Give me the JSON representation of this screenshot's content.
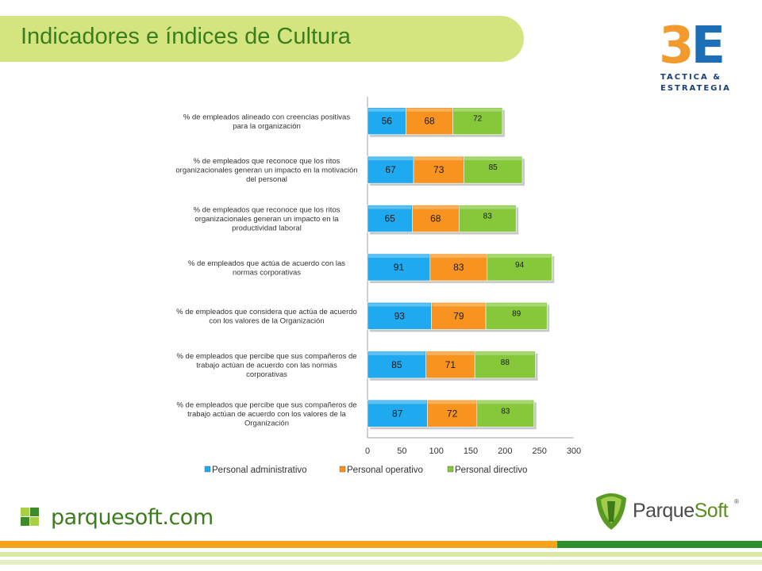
{
  "header": {
    "title": "Indicadores e índices de Cultura"
  },
  "logo": {
    "mark_left": "3",
    "mark_right": "E",
    "line1": "TACTICA &",
    "line2": "ESTRATEGIA"
  },
  "footer": {
    "site": "parquesoft.com",
    "brand_a": "Parque",
    "brand_b": "Soft",
    "brand_reg": "®"
  },
  "chart_data": {
    "type": "bar",
    "orientation": "horizontal",
    "stacked": true,
    "categories": [
      "% de empleados alineado con creencias positivas\npara la organización",
      "% de empleados que reconoce que los ritos\norganizacionales generan un impacto en la motivación\ndel personal",
      "% de empleados que reconoce que los ritos\norganizacionales generan un impacto en la\nproductividad laboral",
      "% de empleados que actúa de acuerdo con las\nnormas corporativas",
      "% de empleados que considera que actúa de acuerdo\ncon los valores de la Organización",
      "% de empleados que percibe que sus compañeros de\ntrabajo actúan de acuerdo con las normas\ncorporativas",
      "% de empleados que percibe que sus compañeros de\ntrabajo actúan de acuerdo con los valores de la\nOrganización"
    ],
    "series": [
      {
        "name": "Personal administrativo",
        "color": "#1fa9ee",
        "values": [
          56,
          67,
          65,
          91,
          93,
          85,
          87
        ]
      },
      {
        "name": "Personal operativo",
        "color": "#f7931e",
        "values": [
          68,
          73,
          68,
          83,
          79,
          71,
          72
        ]
      },
      {
        "name": "Personal directivo",
        "color": "#86c83a",
        "values": [
          72,
          85,
          83,
          94,
          89,
          88,
          83
        ]
      }
    ],
    "xlim": [
      0,
      300
    ],
    "xticks": [
      "0",
      "50",
      "100",
      "150",
      "200",
      "250",
      "300"
    ],
    "legend": "bottom"
  }
}
